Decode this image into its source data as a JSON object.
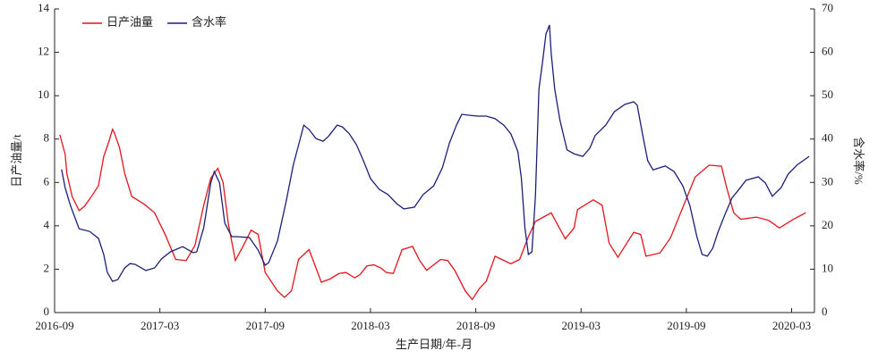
{
  "chart_data": {
    "type": "line",
    "x_label": "生产日期/年-月",
    "y_label": "日产油量/t",
    "y2_label": "含水率/%",
    "xlim": [
      0,
      43.3
    ],
    "xticks": [
      {
        "value": 0,
        "label": "2016-09"
      },
      {
        "value": 6,
        "label": "2017-03"
      },
      {
        "value": 12,
        "label": "2017-09"
      },
      {
        "value": 18,
        "label": "2018-03"
      },
      {
        "value": 24,
        "label": "2018-09"
      },
      {
        "value": 30,
        "label": "2019-03"
      },
      {
        "value": 36,
        "label": "2019-09"
      },
      {
        "value": 42,
        "label": "2020-03"
      }
    ],
    "ylim": [
      0,
      14
    ],
    "yticks": [
      0,
      2,
      4,
      6,
      8,
      10,
      12,
      14
    ],
    "y2lim": [
      0,
      70
    ],
    "y2ticks": [
      0,
      10,
      20,
      30,
      40,
      50,
      60,
      70
    ],
    "legend": "upper left",
    "series": [
      {
        "name": "日产油量",
        "color": "#e3141b",
        "x": [
          0.3,
          0.6,
          0.7,
          1.0,
          1.4,
          1.7,
          2.1,
          2.5,
          2.8,
          3.1,
          3.3,
          3.4,
          3.7,
          4.0,
          4.4,
          5.1,
          5.7,
          6.3,
          6.9,
          7.5,
          8.0,
          8.5,
          8.9,
          9.3,
          9.6,
          9.9,
          10.3,
          10.7,
          11.2,
          11.6,
          12.0,
          12.7,
          13.1,
          13.5,
          13.9,
          14.5,
          15.2,
          15.7,
          16.2,
          16.6,
          17.1,
          17.4,
          17.8,
          18.2,
          18.6,
          18.9,
          19.3,
          19.8,
          20.4,
          20.8,
          21.2,
          22.0,
          22.4,
          22.8,
          23.4,
          23.8,
          24.2,
          24.6,
          25.1,
          26.0,
          26.5,
          27.0,
          27.4,
          28.3,
          29.1,
          29.6,
          29.8,
          30.7,
          31.2,
          31.6,
          32.1,
          33.0,
          33.4,
          33.7,
          34.5,
          35.1,
          35.8,
          36.5,
          37.3,
          38.0,
          38.3,
          38.7,
          39.1,
          40.0,
          40.7,
          41.3,
          42.1,
          42.8
        ],
        "values": [
          8.2,
          7.3,
          6.4,
          5.35,
          4.7,
          4.9,
          5.35,
          5.85,
          7.2,
          7.9,
          8.45,
          8.3,
          7.6,
          6.4,
          5.35,
          5.0,
          4.6,
          3.6,
          2.45,
          2.4,
          3.1,
          4.95,
          6.2,
          6.65,
          6.0,
          4.1,
          2.4,
          3.0,
          3.8,
          3.6,
          1.85,
          1.0,
          0.7,
          1.0,
          2.45,
          2.9,
          1.4,
          1.55,
          1.8,
          1.85,
          1.6,
          1.75,
          2.15,
          2.2,
          2.05,
          1.85,
          1.8,
          2.9,
          3.05,
          2.4,
          1.95,
          2.45,
          2.4,
          1.95,
          1.0,
          0.6,
          1.1,
          1.45,
          2.6,
          2.25,
          2.45,
          3.5,
          4.2,
          4.6,
          3.4,
          3.9,
          4.75,
          5.2,
          4.95,
          3.2,
          2.55,
          3.7,
          3.6,
          2.6,
          2.75,
          3.45,
          4.85,
          6.25,
          6.8,
          6.75,
          5.75,
          4.6,
          4.3,
          4.4,
          4.25,
          3.9,
          4.3,
          4.6
        ]
      },
      {
        "name": "含水率",
        "color": "#1b1f78",
        "axis": "y2",
        "x": [
          0.4,
          0.6,
          0.9,
          1.4,
          2.0,
          2.5,
          2.8,
          3.0,
          3.3,
          3.6,
          4.0,
          4.3,
          4.6,
          5.2,
          5.7,
          6.1,
          6.6,
          7.3,
          7.9,
          8.1,
          8.5,
          8.9,
          9.1,
          9.4,
          9.7,
          10.1,
          10.4,
          11.1,
          11.6,
          12.0,
          12.2,
          12.7,
          13.2,
          13.6,
          14.0,
          14.2,
          14.5,
          14.9,
          15.3,
          15.6,
          16.1,
          16.4,
          16.8,
          17.2,
          17.6,
          18.0,
          18.5,
          19.0,
          19.5,
          19.9,
          20.5,
          21.0,
          21.6,
          22.1,
          22.5,
          22.9,
          23.2,
          23.6,
          24.1,
          24.6,
          25.1,
          25.6,
          26.0,
          26.4,
          26.6,
          26.8,
          27.0,
          27.2,
          27.4,
          27.6,
          27.8,
          28.0,
          28.2,
          28.3,
          28.5,
          28.8,
          29.2,
          29.6,
          30.1,
          30.5,
          30.8,
          31.4,
          31.9,
          32.5,
          33.0,
          33.2,
          33.5,
          33.8,
          34.1,
          34.8,
          35.3,
          35.8,
          36.2,
          36.6,
          36.9,
          37.2,
          37.5,
          37.8,
          38.2,
          38.6,
          39.0,
          39.4,
          40.1,
          40.5,
          40.9,
          41.4,
          41.8,
          42.3,
          43.0
        ],
        "values": [
          33,
          28.8,
          24.7,
          19.3,
          18.7,
          17.1,
          13.4,
          9.3,
          7.2,
          7.6,
          10.3,
          11.3,
          11.1,
          9.7,
          10.3,
          12.4,
          14,
          15.2,
          13.8,
          14,
          19.6,
          29.9,
          32.5,
          29.9,
          20.6,
          17.5,
          17.5,
          17.3,
          14.4,
          10.9,
          11.5,
          16.5,
          25.7,
          34,
          40.1,
          43.2,
          42.2,
          40.1,
          39.5,
          40.6,
          43.2,
          42.8,
          41.2,
          38.7,
          35,
          30.9,
          28.4,
          27.2,
          25.1,
          23.9,
          24.3,
          27.2,
          29.2,
          33.4,
          39.1,
          43.2,
          45.7,
          45.5,
          45.3,
          45.3,
          44.7,
          43.2,
          41.2,
          37.1,
          30.9,
          19.6,
          13.4,
          14,
          26.8,
          51.5,
          57.6,
          64.2,
          66.3,
          59.7,
          51.5,
          44.3,
          37.5,
          36.6,
          36,
          37.9,
          40.8,
          43.2,
          46.3,
          48,
          48.6,
          47.8,
          41.2,
          35,
          32.9,
          33.8,
          32.5,
          29.2,
          24.7,
          17.5,
          13.4,
          13,
          14.8,
          18.5,
          22.6,
          26.4,
          28.4,
          30.5,
          31.3,
          29.9,
          26.8,
          28.8,
          31.9,
          34,
          36
        ]
      }
    ]
  }
}
